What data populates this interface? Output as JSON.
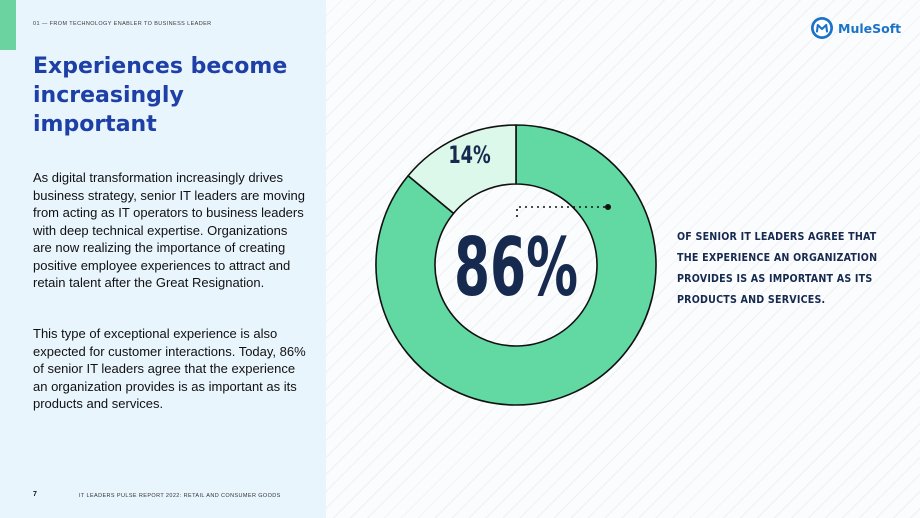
{
  "header": {
    "section_label": "01 — FROM TECHNOLOGY ENABLER TO BUSINESS LEADER",
    "brand_name": "MuleSoft"
  },
  "content": {
    "title": "Experiences become increasingly important",
    "paragraph1": "As digital transformation increasingly drives business strategy, senior IT leaders are moving from acting as IT operators to business leaders with deep technical expertise. Organizations are now realizing the importance of creating positive employee experiences to attract and retain talent after the Great Resignation.",
    "paragraph2": "This type of exceptional experience is also expected for customer interactions. Today, 86% of senior IT leaders agree that the experience an organization provides is as important as its products and services."
  },
  "chart_data": {
    "type": "pie",
    "slices": [
      {
        "label": "86%",
        "value": 86,
        "color": "#62d9a2"
      },
      {
        "label": "14%",
        "value": 14,
        "color": "#dcf8ea"
      }
    ],
    "center_label": "86%",
    "caption": "OF SENIOR IT LEADERS AGREE THAT THE EXPERIENCE AN ORGANIZATION PROVIDES IS AS IMPORTANT AS ITS PRODUCTS AND SERVICES."
  },
  "footer": {
    "page_number": "7",
    "report_label": "IT LEADERS PULSE REPORT 2022: RETAIL AND CONSUMER GOODS"
  },
  "colors": {
    "left_panel": "#e9f5fd",
    "accent": "#6bd3a0",
    "title": "#1d3fa6",
    "stat_text": "#16294f",
    "brand": "#1a73c9"
  },
  "icons": {
    "brand_logo": "mulesoft-logo-icon"
  }
}
